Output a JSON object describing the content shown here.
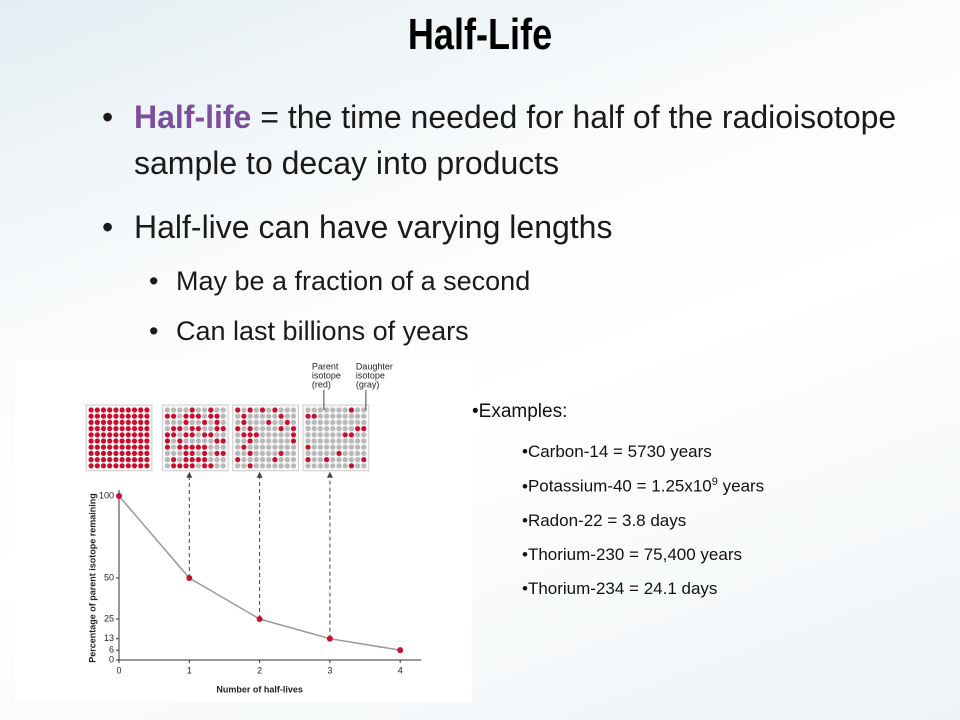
{
  "title": "Half-Life",
  "bullets": [
    {
      "term": "Half-life",
      "text": " = the time needed for half of the radioisotope sample to decay into products"
    },
    {
      "text": "Half-live can have varying lengths"
    }
  ],
  "sub_bullets": [
    "May be a fraction of a second",
    "Can last billions of years"
  ],
  "examples": {
    "heading": "Examples:",
    "items": [
      {
        "text": "Carbon-14 = 5730 years"
      },
      {
        "text": "Potassium-40 = 1.25x10",
        "sup": "9",
        "after": " years"
      },
      {
        "text": "Radon-22 = 3.8 days"
      },
      {
        "text": "Thorium-230 = 75,400 years"
      },
      {
        "text": "Thorium-234 = 24.1 days"
      }
    ]
  },
  "chart_data": {
    "type": "line",
    "x": [
      0,
      1,
      2,
      3,
      4
    ],
    "values": [
      100,
      50,
      25,
      13,
      6
    ],
    "color": "#c8102e",
    "line_color": "#999999",
    "daughter_color": "#b8b8b8",
    "xlim": [
      0,
      4.3
    ],
    "ylim": [
      0,
      100
    ],
    "xticks": [
      0,
      1,
      2,
      3,
      4
    ],
    "yticks": [
      0,
      6,
      13,
      25,
      50,
      100
    ],
    "xlabel": "Number of half-lives",
    "ylabel": "Percentage of parent isotope remaining",
    "parent_label": [
      "Parent",
      "isotope",
      "(red)"
    ],
    "daughter_label": [
      "Daughter",
      "isotope",
      "(gray)"
    ]
  }
}
